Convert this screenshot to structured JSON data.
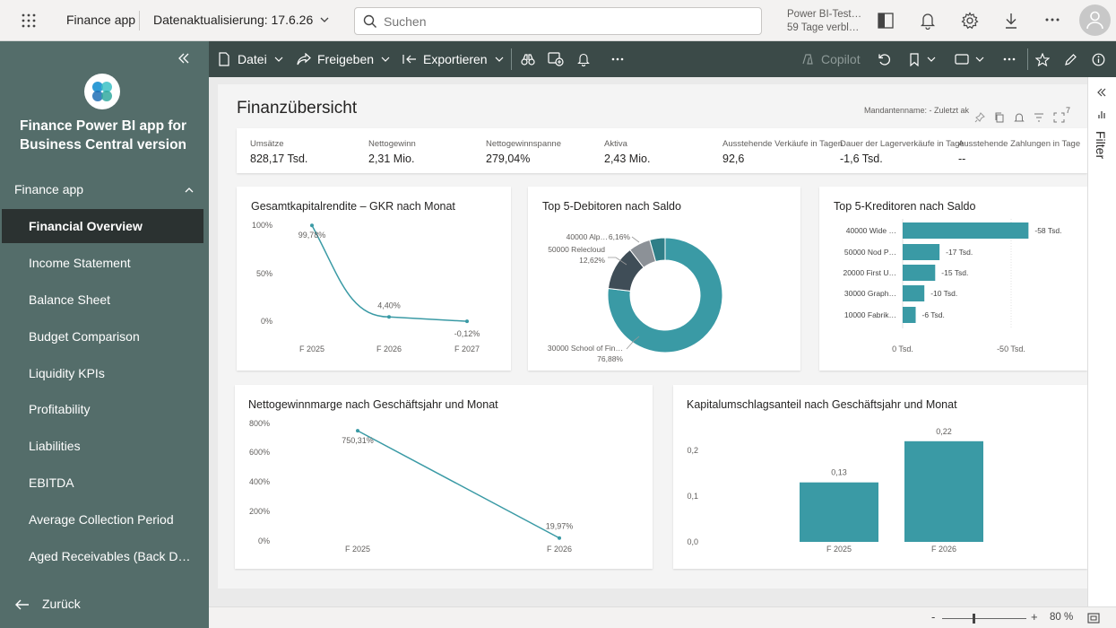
{
  "topbar": {
    "app_name": "Finance app",
    "refresh": "Datenaktualisierung: 17.6.26",
    "search_placeholder": "Suchen",
    "trial_line1": "Power BI-Test…",
    "trial_line2": "59 Tage verbl…"
  },
  "sidebar": {
    "app_title": "Finance Power BI app for Business Central version",
    "section": "Finance app",
    "items": [
      {
        "label": "Financial Overview"
      },
      {
        "label": "Income Statement"
      },
      {
        "label": "Balance Sheet"
      },
      {
        "label": "Budget Comparison"
      },
      {
        "label": "Liquidity KPIs"
      },
      {
        "label": "Profitability"
      },
      {
        "label": "Liabilities"
      },
      {
        "label": "EBITDA"
      },
      {
        "label": "Average Collection Period"
      },
      {
        "label": "Aged Receivables (Back D…"
      }
    ],
    "back": "Zurück"
  },
  "toolbar": {
    "file": "Datei",
    "share": "Freigeben",
    "export": "Exportieren",
    "copilot": "Copilot"
  },
  "report": {
    "title": "Finanzübersicht",
    "meta": "Mandantenname: - Zuletzt ak",
    "meta_extra": "7",
    "kpis": [
      {
        "label": "Umsätze",
        "value": "828,17 Tsd."
      },
      {
        "label": "Nettogewinn",
        "value": "2,31 Mio."
      },
      {
        "label": "Nettogewinnspanne",
        "value": "279,04%"
      },
      {
        "label": "Aktiva",
        "value": "2,43 Mio."
      },
      {
        "label": "Ausstehende Verkäufe in Tagen",
        "value": "92,6"
      },
      {
        "label": "Dauer der Lagerverkäufe in Tage",
        "value": "-1,6 Tsd."
      },
      {
        "label": "Ausstehende Zahlungen in Tage",
        "value": "--"
      }
    ]
  },
  "filter_label": "Filter",
  "statusbar": {
    "zoom": "80 %"
  },
  "colors": {
    "accent": "#3a9aa5",
    "dark": "#3f4d57",
    "gray": "#8c9197",
    "sidebar": "#546d6a",
    "toolbar": "#3b4a48"
  },
  "chart_data": [
    {
      "type": "line",
      "title": "Gesamtkapitalrendite – GKR nach Monat",
      "categories": [
        "F 2025",
        "F 2026",
        "F 2027"
      ],
      "values": [
        99.78,
        4.4,
        -0.12
      ],
      "labels": [
        "99,78%",
        "4,40%",
        "-0,12%"
      ],
      "yticks": [
        "100%",
        "50%",
        "0%"
      ],
      "ylim": [
        0,
        100
      ]
    },
    {
      "type": "pie",
      "title": "Top 5-Debitoren nach Saldo",
      "slices": [
        {
          "name": "30000 School of Fin…",
          "value": 76.88,
          "label": "76,88%",
          "color": "#3a9aa5"
        },
        {
          "name": "50000 Relecloud",
          "value": 12.62,
          "label": "12,62%",
          "color": "#3f4d57"
        },
        {
          "name": "40000 Alp…",
          "value": 6.16,
          "label": "6,16%",
          "color": "#8c9197"
        },
        {
          "name": "",
          "value": 4.34,
          "label": "",
          "color": "#2f7e87"
        }
      ]
    },
    {
      "type": "bar",
      "title": "Top 5-Kreditoren nach Saldo",
      "categories": [
        "40000 Wide …",
        "50000 Nod P…",
        "20000 First U…",
        "30000 Graph…",
        "10000 Fabrik…"
      ],
      "values": [
        -58,
        -17,
        -15,
        -10,
        -6
      ],
      "labels": [
        "-58 Tsd.",
        "-17 Tsd.",
        "-15 Tsd.",
        "-10 Tsd.",
        "-6 Tsd."
      ],
      "xticks": [
        "0 Tsd.",
        "-50 Tsd."
      ]
    },
    {
      "type": "line",
      "title": "Nettogewinnmarge nach Geschäftsjahr und Monat",
      "categories": [
        "F 2025",
        "F 2026"
      ],
      "values": [
        750.31,
        19.97
      ],
      "labels": [
        "750,31%",
        "19,97%"
      ],
      "yticks": [
        "800%",
        "600%",
        "400%",
        "200%",
        "0%"
      ],
      "ylim": [
        0,
        800
      ]
    },
    {
      "type": "bar",
      "title": "Kapitalumschlagsanteil nach Geschäftsjahr und Monat",
      "categories": [
        "F 2025",
        "F 2026"
      ],
      "values": [
        0.13,
        0.22
      ],
      "labels": [
        "0,13",
        "0,22"
      ],
      "yticks": [
        "0,2",
        "0,1",
        "0,0"
      ],
      "ylim": [
        0,
        0.24
      ]
    }
  ]
}
